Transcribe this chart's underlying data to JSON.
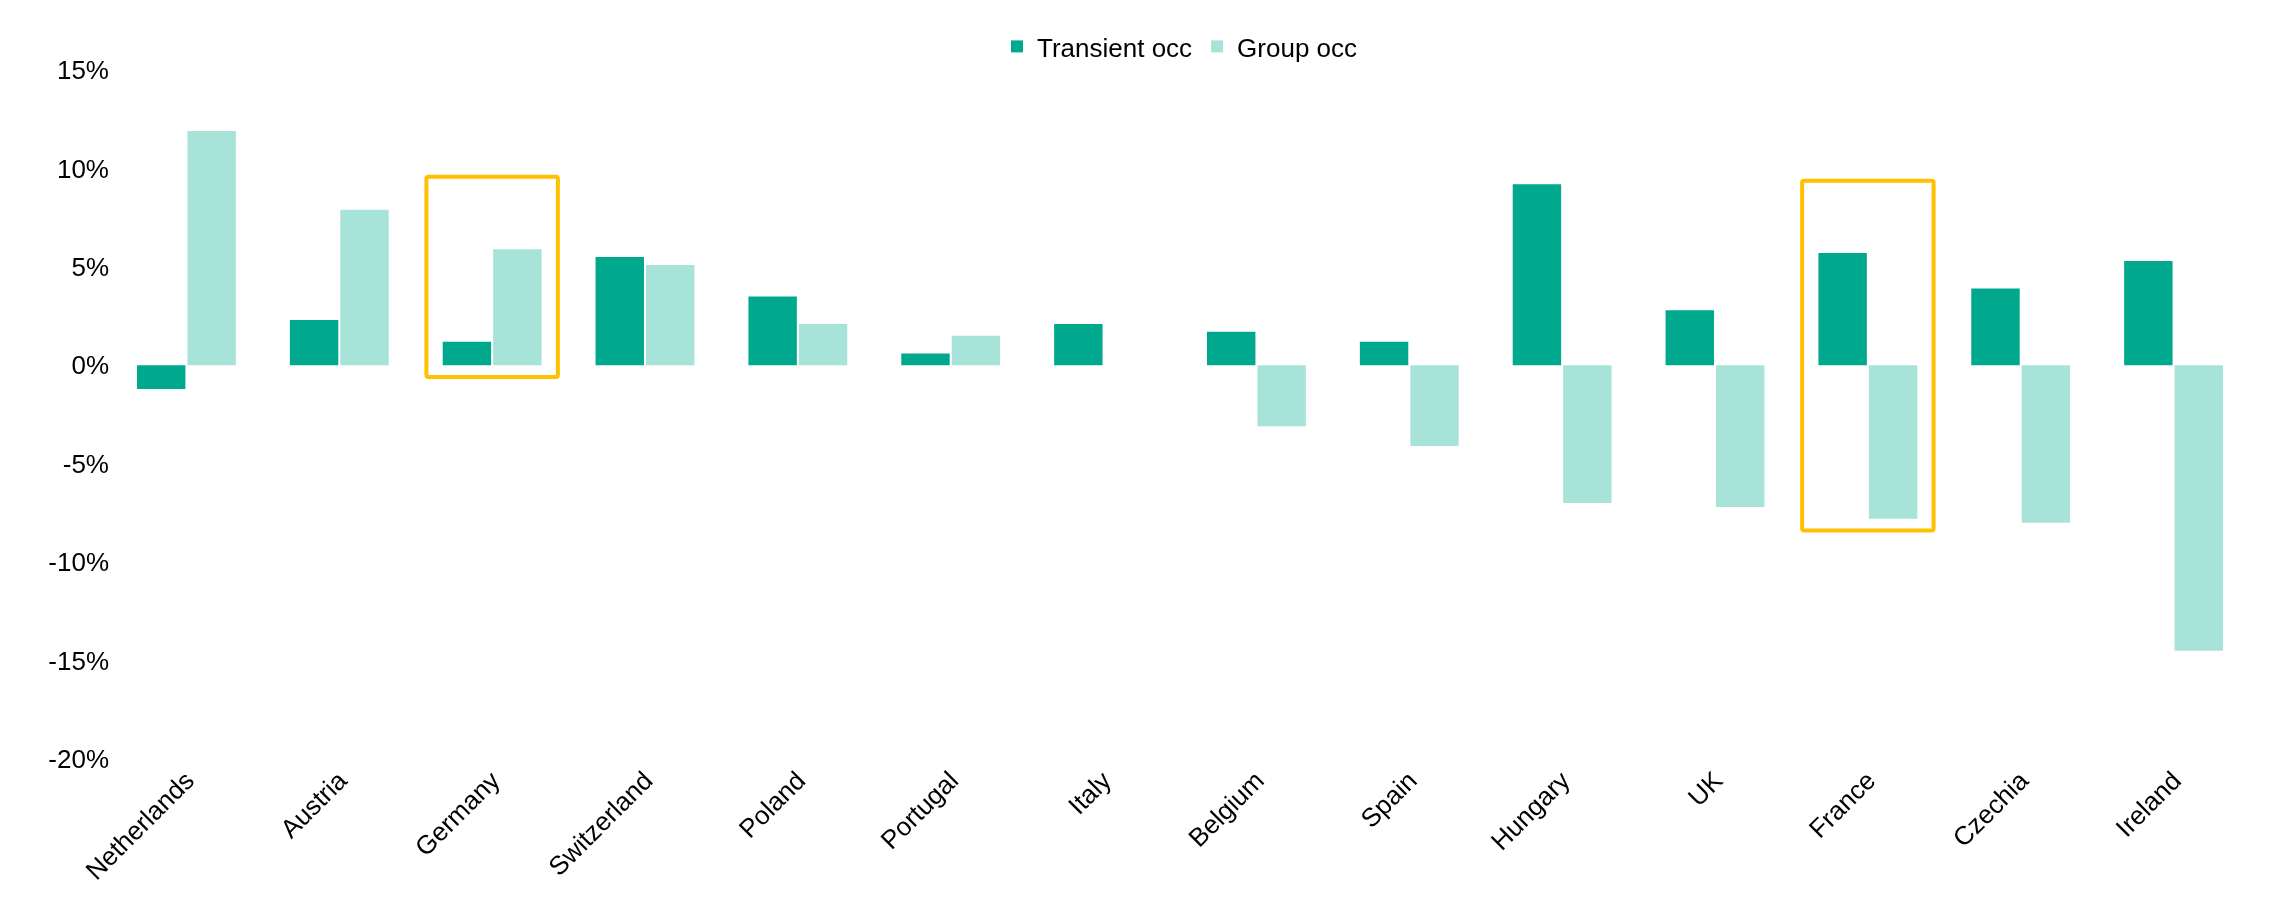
{
  "chart_data": {
    "type": "bar",
    "categories": [
      "Netherlands",
      "Austria",
      "Germany",
      "Switzerland",
      "Poland",
      "Portugal",
      "Italy",
      "Belgium",
      "Spain",
      "Hungary",
      "UK",
      "France",
      "Czechia",
      "Ireland"
    ],
    "series": [
      {
        "name": "Transient occ",
        "color": "#00a88e",
        "values": [
          -1.2,
          2.3,
          1.2,
          5.5,
          3.5,
          0.6,
          2.1,
          1.7,
          1.2,
          9.2,
          2.8,
          5.7,
          3.9,
          5.3
        ]
      },
      {
        "name": "Group occ",
        "color": "#a8e3da",
        "values": [
          11.9,
          7.9,
          5.9,
          5.1,
          2.1,
          1.5,
          null,
          -3.1,
          -4.1,
          -7.0,
          -7.2,
          -7.8,
          -8.0,
          -14.5
        ]
      }
    ],
    "ylim": [
      -20,
      15
    ],
    "yticks": [
      {
        "value": -20,
        "label": "-20%"
      },
      {
        "value": -15,
        "label": "-15%"
      },
      {
        "value": -10,
        "label": "-10%"
      },
      {
        "value": -5,
        "label": "-5%"
      },
      {
        "value": 0,
        "label": "0%"
      },
      {
        "value": 5,
        "label": "5%"
      },
      {
        "value": 10,
        "label": "10%"
      },
      {
        "value": 15,
        "label": "15%"
      }
    ],
    "grid": false,
    "legend": "top"
  }
}
